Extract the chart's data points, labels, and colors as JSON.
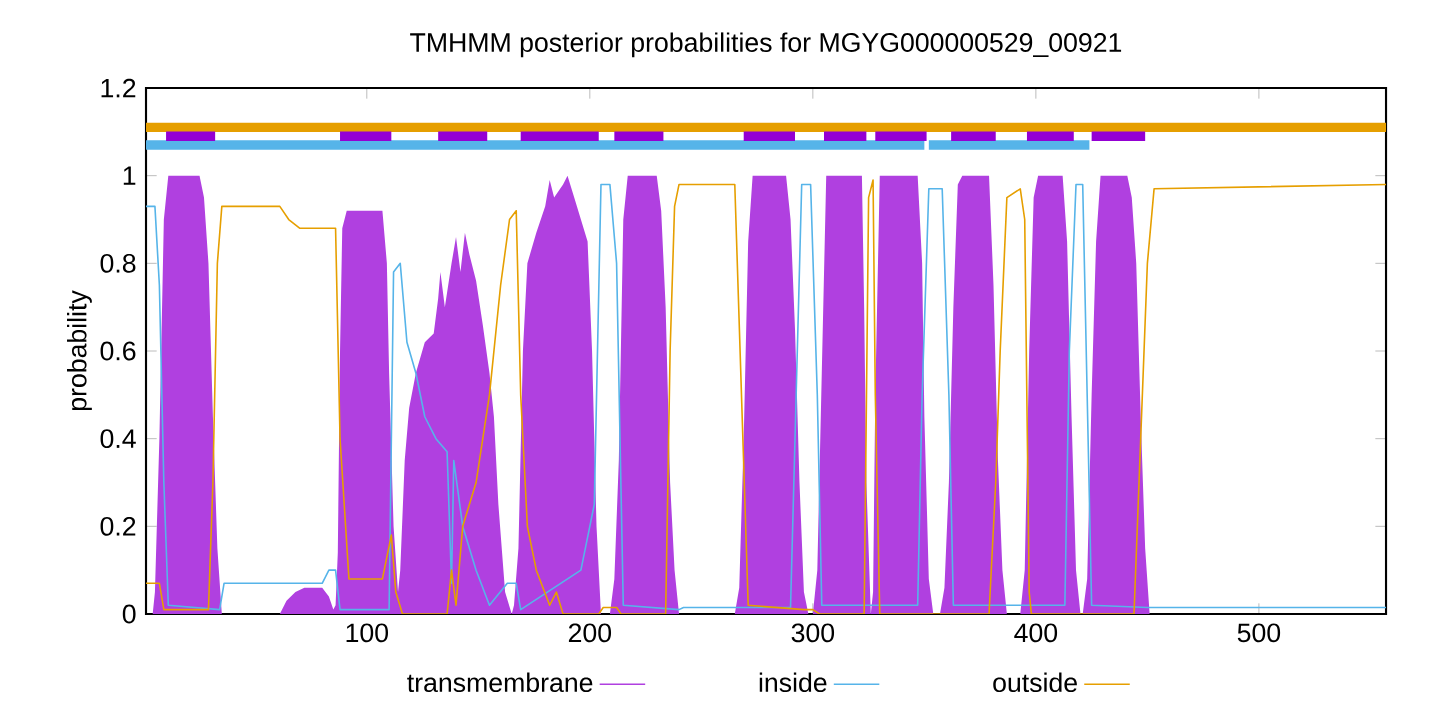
{
  "chart_data": {
    "type": "line",
    "title": "TMHMM posterior probabilities for MGYG000000529_00921",
    "ylabel": "probability",
    "legend": "bottom",
    "xlim": [
      1,
      557
    ],
    "ylim": [
      0,
      1.2
    ],
    "xticks": [
      100,
      200,
      300,
      400,
      500
    ],
    "yticks": [
      0,
      0.2,
      0.4,
      0.6,
      0.8,
      1,
      1.2
    ],
    "series": [
      {
        "name": "transmembrane",
        "type": "area",
        "color": "#b040e0",
        "x": [
          1,
          4,
          5,
          7,
          9,
          11,
          25,
          27,
          29,
          31,
          33,
          35,
          61,
          64,
          68,
          72,
          80,
          83,
          85,
          86,
          87,
          88,
          89,
          91,
          107,
          109,
          110,
          112,
          114,
          115,
          117,
          119,
          122,
          126,
          130,
          132,
          133,
          135,
          138,
          140,
          142,
          144,
          146,
          149,
          152,
          155,
          157,
          159,
          162,
          165,
          166,
          168,
          170,
          172,
          176,
          180,
          182,
          184,
          188,
          190,
          193,
          196,
          199,
          201,
          203,
          205,
          209,
          211,
          213,
          215,
          217,
          230,
          232,
          234,
          236,
          238,
          240,
          265,
          267,
          269,
          271,
          273,
          288,
          290,
          292,
          294,
          296,
          298,
          300,
          302,
          304,
          306,
          322,
          323,
          324,
          326,
          327,
          328,
          330,
          347,
          349,
          350,
          352,
          354,
          357,
          359,
          361,
          363,
          365,
          367,
          379,
          381,
          383,
          385,
          387,
          393,
          395,
          397,
          399,
          401,
          412,
          414,
          416,
          418,
          420,
          421,
          423,
          425,
          427,
          429,
          441,
          443,
          445,
          447,
          449,
          451,
          557
        ],
        "values": [
          0,
          0,
          0.05,
          0.4,
          0.9,
          1,
          1,
          0.95,
          0.8,
          0.45,
          0.15,
          0,
          0,
          0.03,
          0.05,
          0.06,
          0.06,
          0.04,
          0.01,
          0.02,
          0.14,
          0.6,
          0.88,
          0.92,
          0.92,
          0.8,
          0.55,
          0.2,
          0.05,
          0.1,
          0.35,
          0.47,
          0.55,
          0.62,
          0.64,
          0.72,
          0.78,
          0.7,
          0.8,
          0.86,
          0.78,
          0.87,
          0.82,
          0.76,
          0.66,
          0.55,
          0.45,
          0.25,
          0.05,
          0,
          0.02,
          0.15,
          0.6,
          0.8,
          0.87,
          0.93,
          0.99,
          0.95,
          0.98,
          1,
          0.95,
          0.9,
          0.85,
          0.6,
          0.2,
          0,
          0,
          0.08,
          0.35,
          0.9,
          1,
          1,
          0.92,
          0.7,
          0.3,
          0.1,
          0,
          0,
          0.06,
          0.4,
          0.85,
          1,
          1,
          0.9,
          0.65,
          0.3,
          0.05,
          0,
          0,
          0.1,
          0.55,
          1,
          1,
          0.7,
          0.3,
          0,
          0.05,
          0.5,
          1,
          1,
          0.8,
          0.45,
          0.08,
          0,
          0,
          0.06,
          0.3,
          0.7,
          0.98,
          1,
          1,
          0.75,
          0.35,
          0.1,
          0,
          0,
          0.1,
          0.6,
          0.95,
          1,
          1,
          0.85,
          0.45,
          0.1,
          0,
          0,
          0.08,
          0.5,
          0.85,
          1,
          1,
          0.95,
          0.8,
          0.45,
          0.15,
          0,
          0
        ]
      },
      {
        "name": "inside",
        "color": "#56b4e9",
        "x": [
          1,
          5,
          7,
          9,
          11,
          34,
          36,
          80,
          83,
          86,
          88,
          110,
          112,
          115,
          118,
          122,
          126,
          131,
          136,
          138,
          139,
          143,
          149,
          155,
          163,
          167,
          169,
          196,
          202,
          205,
          209,
          212,
          215,
          240,
          242,
          290,
          292,
          295,
          299,
          302,
          304,
          347,
          349,
          352,
          358,
          361,
          363,
          413,
          415,
          418,
          421,
          423,
          425,
          450,
          557
        ],
        "values": [
          0.93,
          0.93,
          0.75,
          0.3,
          0.02,
          0.01,
          0.07,
          0.07,
          0.1,
          0.1,
          0.01,
          0.01,
          0.78,
          0.8,
          0.62,
          0.55,
          0.45,
          0.4,
          0.37,
          0.07,
          0.35,
          0.2,
          0.1,
          0.02,
          0.07,
          0.07,
          0.01,
          0.1,
          0.25,
          0.98,
          0.98,
          0.8,
          0.02,
          0.01,
          0.015,
          0.015,
          0.4,
          0.98,
          0.98,
          0.5,
          0.02,
          0.02,
          0.5,
          0.97,
          0.97,
          0.5,
          0.02,
          0.02,
          0.6,
          0.98,
          0.98,
          0.5,
          0.02,
          0.015,
          0.015
        ]
      },
      {
        "name": "outside",
        "color": "#e69f00",
        "x": [
          1,
          7,
          9,
          29,
          31,
          33,
          35,
          61,
          65,
          70,
          86,
          88,
          92,
          107,
          111,
          113,
          116,
          136,
          138,
          140,
          143,
          149,
          155,
          160,
          164,
          167,
          169,
          172,
          176,
          182,
          185,
          188,
          204,
          206,
          212,
          214,
          234,
          236,
          238,
          240,
          265,
          268,
          271,
          296,
          300,
          303,
          323,
          325,
          327,
          328,
          330,
          379,
          382,
          384,
          387,
          393,
          395,
          397,
          398,
          444,
          447,
          450,
          453,
          557
        ],
        "values": [
          0.07,
          0.07,
          0.01,
          0.01,
          0.3,
          0.8,
          0.93,
          0.93,
          0.9,
          0.88,
          0.88,
          0.4,
          0.08,
          0.08,
          0.18,
          0.05,
          0,
          0,
          0.1,
          0.02,
          0.2,
          0.3,
          0.5,
          0.75,
          0.9,
          0.92,
          0.5,
          0.2,
          0.1,
          0.02,
          0.05,
          0,
          0,
          0.015,
          0.015,
          0,
          0,
          0.6,
          0.93,
          0.98,
          0.98,
          0.5,
          0.02,
          0.01,
          0.01,
          0,
          0,
          0.95,
          0.99,
          0.5,
          0,
          0,
          0.3,
          0.6,
          0.95,
          0.97,
          0.9,
          0.05,
          0,
          0,
          0.4,
          0.8,
          0.97,
          0.98
        ]
      },
      {
        "color": "#e69f00",
        "x": [
          1,
          557
        ],
        "values": [
          1.11,
          1.11
        ]
      },
      {
        "color": "#56b4e9",
        "x": [
          1,
          350,
          351,
          352,
          424
        ],
        "values": [
          1.07,
          1.07,
          null,
          1.07,
          1.07
        ]
      },
      {
        "color": "#9400d3",
        "x": [
          10,
          32,
          33,
          88,
          111,
          112,
          132,
          154,
          155,
          169,
          204,
          205,
          211,
          233,
          234,
          269,
          292,
          293,
          305,
          324,
          325,
          328,
          351,
          352,
          362,
          382,
          383,
          396,
          417,
          418,
          425,
          449
        ],
        "values": [
          1.09,
          1.09,
          null,
          1.09,
          1.09,
          null,
          1.09,
          1.09,
          null,
          1.09,
          1.09,
          null,
          1.09,
          1.09,
          null,
          1.09,
          1.09,
          null,
          1.09,
          1.09,
          null,
          1.09,
          1.09,
          null,
          1.09,
          1.09,
          null,
          1.09,
          1.09,
          null,
          1.09,
          1.09
        ]
      }
    ]
  }
}
